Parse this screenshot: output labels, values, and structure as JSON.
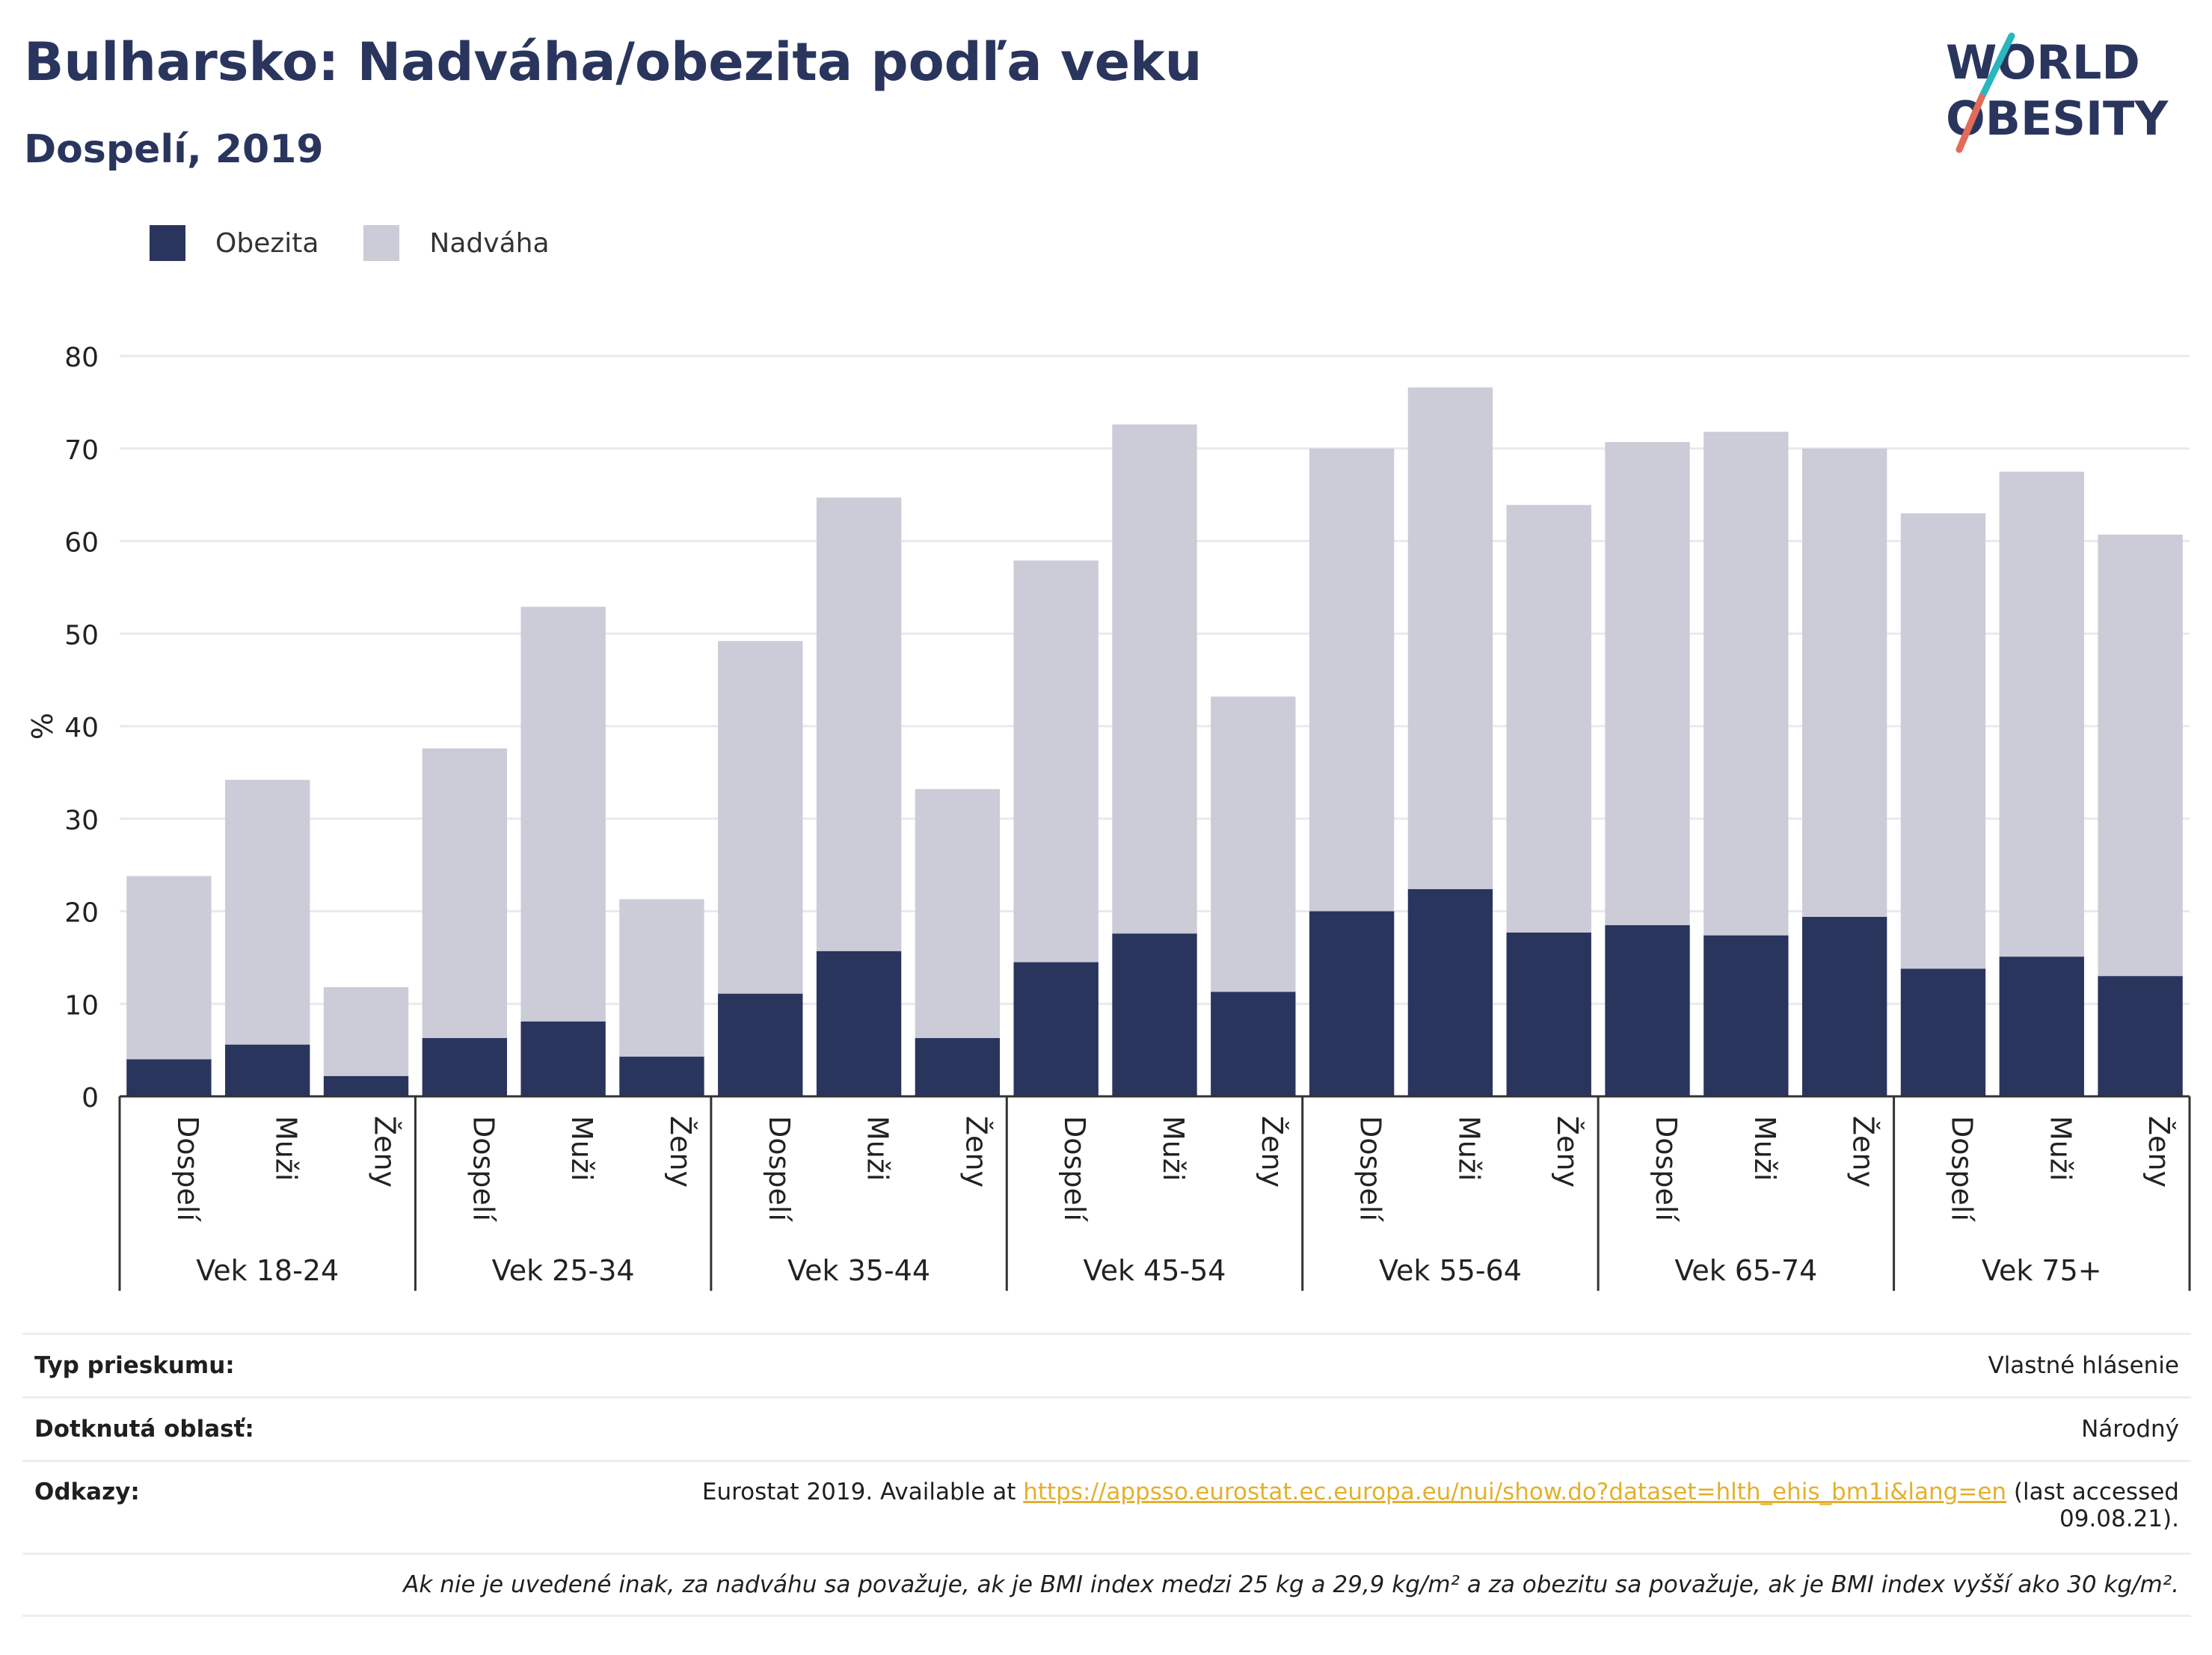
{
  "header": {
    "title": "Bulharsko: Nadváha/obezita podľa veku",
    "subtitle": "Dospelí, 2019"
  },
  "logo": {
    "line1": "WORLD",
    "line2": "OBESITY"
  },
  "legend": [
    {
      "label": "Obezita",
      "color": "#2a355e"
    },
    {
      "label": "Nadváha",
      "color": "#cbccd7"
    }
  ],
  "chart_data": {
    "type": "bar",
    "stacked": true,
    "ylabel": "%",
    "ylim": [
      0,
      80
    ],
    "yticks": [
      0,
      10,
      20,
      30,
      40,
      50,
      60,
      70,
      80
    ],
    "grid": true,
    "groups": [
      "Vek 18-24",
      "Vek 25-34",
      "Vek 35-44",
      "Vek 45-54",
      "Vek 55-64",
      "Vek 65-74",
      "Vek 75+"
    ],
    "subcategories": [
      "Dospelí",
      "Muži",
      "Ženy"
    ],
    "series": [
      {
        "name": "Obezita",
        "color": "#2a355e",
        "values": [
          4.0,
          5.6,
          2.2,
          6.3,
          8.1,
          4.3,
          11.1,
          15.7,
          6.3,
          14.5,
          17.6,
          11.3,
          20.0,
          22.4,
          17.7,
          18.5,
          17.4,
          19.4,
          13.8,
          15.1,
          13.0
        ]
      },
      {
        "name": "Nadváha",
        "color": "#cbccd7",
        "values": [
          19.8,
          28.6,
          9.6,
          31.3,
          44.8,
          17.0,
          38.1,
          49.0,
          26.9,
          43.4,
          55.0,
          31.9,
          50.0,
          54.2,
          46.2,
          52.2,
          54.4,
          50.6,
          49.2,
          52.4,
          47.7
        ]
      }
    ]
  },
  "info": {
    "survey_type_label": "Typ prieskumu:",
    "survey_type_value": "Vlastné hlásenie",
    "area_label": "Dotknutá oblasť:",
    "area_value": "Národný",
    "refs_label": "Odkazy:",
    "refs_prefix": "Eurostat 2019. Available at ",
    "refs_link": "https://appsso.eurostat.ec.europa.eu/nui/show.do?dataset=hlth_ehis_bm1i&lang=en",
    "refs_suffix": " (last accessed",
    "refs_date": "09.08.21).",
    "note": "Ak nie je uvedené inak, za nadváhu sa považuje, ak je BMI index medzi 25 kg a 29,9 kg/m² a za obezitu sa považuje, ak je BMI index vyšší ako 30 kg/m²."
  }
}
